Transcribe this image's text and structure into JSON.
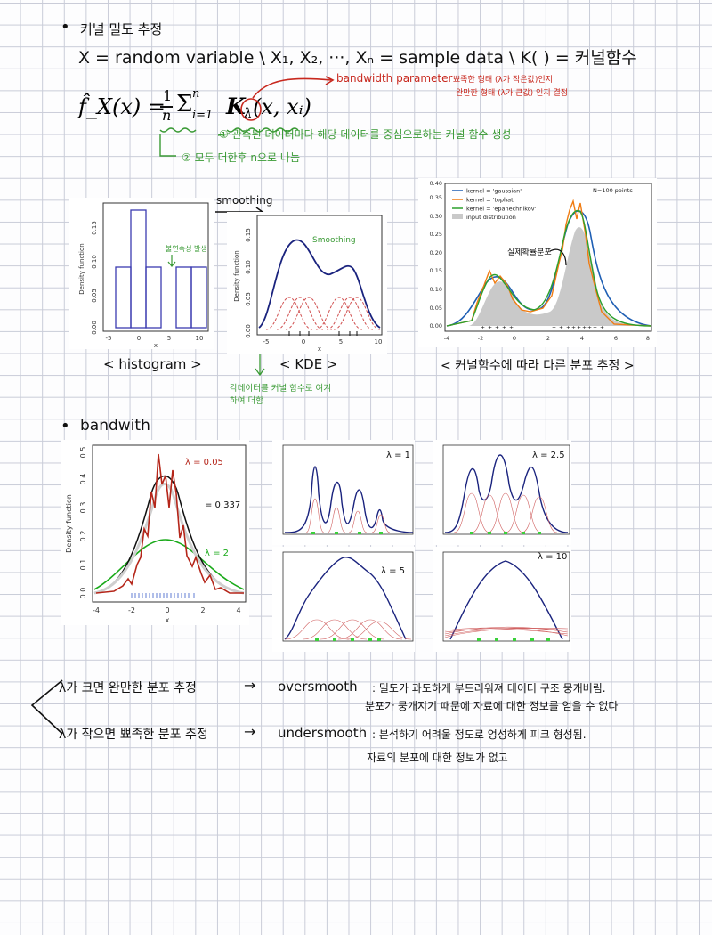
{
  "section1": {
    "bullet": "•",
    "title": "커널 밀도 추정",
    "definition": "X = random variable \\ X₁, X₂, ···, Xₙ = sample data \\ K( ) = 커널함수",
    "formula": {
      "lhs": "f̂_X(x) = ",
      "frac_num": "1",
      "frac_den": "n",
      "sum": "Σ",
      "sum_top": "n",
      "sum_bottom": "i=1",
      "kernel": "K",
      "lambda": "λ",
      "args": "(x, xᵢ)"
    },
    "bandwidth_label": "bandwidth parameter",
    "bandwidth_note_1": ": 뾰족한 형태 (λ가 작은값)인지",
    "bandwidth_note_2": "완만한 형태 (λ가 큰값) 인지 결정",
    "note_1": "① 관측된 데이터마다 해당 데이터를 중심으로하는 커널 함수 생성",
    "note_2": "② 모두 더한후 n으로 나눔"
  },
  "histogram_panel": {
    "y_label": "Density function",
    "x_label": "x",
    "y_ticks": [
      "0.00",
      "0.05",
      "0.10",
      "0.15"
    ],
    "x_ticks": [
      "-5",
      "0",
      "5",
      "10"
    ],
    "annotation": "불연속성 발생",
    "caption": "< histogram >"
  },
  "smoothing_arrow_label": "smoothing",
  "kde_panel": {
    "y_label": "Density function",
    "x_label": "x",
    "y_ticks": [
      "0.00",
      "0.05",
      "0.10",
      "0.15"
    ],
    "x_ticks": [
      "-5",
      "0",
      "5",
      "10"
    ],
    "annotation": "Smoothing",
    "caption": "< KDE >",
    "note": "각데이터를 커널 함수로 여겨",
    "note_2": "하여 더함"
  },
  "kernel_compare_panel": {
    "legend": [
      "kernel = 'gaussian'",
      "kernel = 'tophat'",
      "kernel = 'epanechnikov'",
      "input distribution"
    ],
    "points_label": "N=100 points",
    "y_ticks": [
      "0.00",
      "0.05",
      "0.10",
      "0.15",
      "0.20",
      "0.25",
      "0.30",
      "0.35",
      "0.40"
    ],
    "x_ticks": [
      "-4",
      "-2",
      "0",
      "2",
      "4",
      "6",
      "8"
    ],
    "annotation": "실제확률분포",
    "caption": "< 커널함수에 따라 다른 분포 추정 >",
    "colors": {
      "gaussian": "#1f5fb4",
      "tophat": "#f07c12",
      "epanechnikov": "#2ca02c",
      "input": "#c9c9c9"
    }
  },
  "section2": {
    "bullet": "•",
    "title": "bandwith"
  },
  "bandwidth_plot": {
    "y_label": "Density function",
    "x_label": "x",
    "y_ticks": [
      "0.0",
      "0.1",
      "0.2",
      "0.3",
      "0.4",
      "0.5"
    ],
    "x_ticks": [
      "-4",
      "-2",
      "0",
      "2",
      "4"
    ],
    "label_small": "λ = 0.05",
    "label_mid": "= 0.337",
    "label_large": "λ = 2"
  },
  "small_panels": [
    {
      "label": "λ = 1"
    },
    {
      "label": "λ = 2.5"
    },
    {
      "label": "λ = 5"
    },
    {
      "label": "λ = 10"
    }
  ],
  "conclusions": {
    "row1_left": "λ가 크면 완만한 분포 추정",
    "row1_arrow": "→",
    "row1_term": "oversmooth",
    "row1_desc": ": 밀도가 과도하게 부드러워져 데이터 구조 뭉개버림.",
    "row1_desc_2": "분포가 뭉개지기 때문에 자료에 대한 정보를 얻을 수 없다",
    "row2_left": "λ가 작으면 뾰족한 분포 추정",
    "row2_arrow": "→",
    "row2_term": "undersmooth",
    "row2_desc": ": 분석하기 어려울 정도로 엉성하게 피크 형성됨.",
    "row2_desc_2": "자료의 분포에 대한 정보가 없고"
  }
}
